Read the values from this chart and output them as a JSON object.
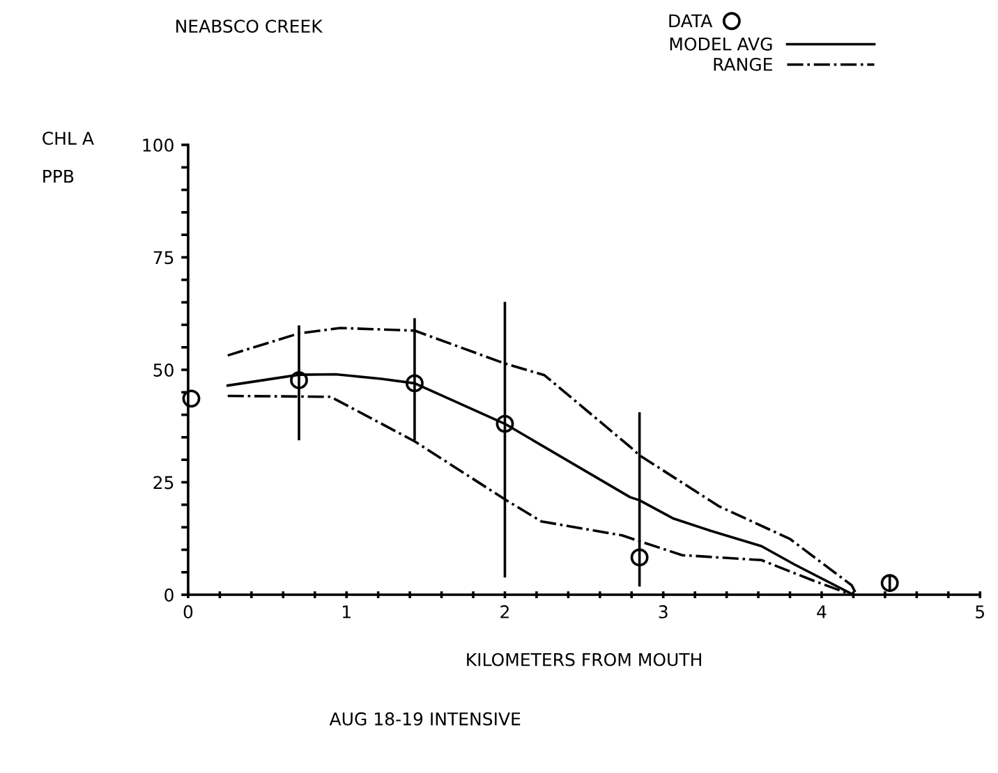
{
  "chart_data": {
    "type": "line",
    "title": "NEABSCO CREEK",
    "xlabel": "KILOMETERS FROM MOUTH",
    "ylabel": "CHL A\nPPB",
    "annotations": [
      "AUG 18-19 INTENSIVE"
    ],
    "series": [
      {
        "name": "DATA",
        "type": "scatter",
        "color": "#000000",
        "marker": "circle",
        "x": [
          0.02,
          0.7,
          1.43,
          2.0,
          2.85,
          4.43
        ],
        "values": [
          43.6,
          47.7,
          47.0,
          38.0,
          8.3,
          2.6
        ],
        "errors": [
          null,
          [
            34.6,
            59.6
          ],
          [
            34.6,
            61.2
          ],
          [
            4.1,
            64.8
          ],
          [
            2.1,
            40.3
          ],
          [
            1,
            4
          ]
        ]
      },
      {
        "name": "MODEL AVG",
        "color": "#000000",
        "line_style": "solid",
        "x": [
          0.25,
          0.7,
          0.93,
          1.22,
          1.43,
          2.0,
          2.79,
          2.85,
          3.06,
          3.3,
          3.62,
          3.83,
          4.2
        ],
        "values": [
          46.5,
          48.9,
          49.0,
          48.0,
          47.0,
          38.0,
          21.7,
          21.0,
          17.0,
          14.2,
          10.8,
          6.7,
          0
        ]
      },
      {
        "name": "RANGE",
        "color": "#000000",
        "line_style": "dashdot",
        "x": [
          0.25,
          0.7,
          0.96,
          1.43,
          2.0,
          2.25,
          2.79,
          2.85,
          3.35,
          3.8,
          4.19,
          4.22
        ],
        "values": [
          53.2,
          58.1,
          59.3,
          58.7,
          51.4,
          48.8,
          32.9,
          31.0,
          19.7,
          12.4,
          2.1,
          0
        ]
      },
      {
        "color": "#000000",
        "line_style": "dashdot",
        "x": [
          0.25,
          0.9,
          1.43,
          2.0,
          2.23,
          2.74,
          2.85,
          3.12,
          3.62,
          3.95,
          4.19
        ],
        "values": [
          44.2,
          44.0,
          34.1,
          21.2,
          16.3,
          13.2,
          11.9,
          8.8,
          7.7,
          3.1,
          0
        ]
      }
    ],
    "xlim": [
      0,
      5
    ],
    "ylim": [
      0,
      100
    ],
    "xticks": [
      0,
      {
        "value": 0.2,
        "label": null
      },
      {
        "value": 0.4,
        "label": null
      },
      {
        "value": 0.6,
        "label": null
      },
      {
        "value": 0.8,
        "label": null
      },
      1,
      {
        "value": 1.2,
        "label": null
      },
      {
        "value": 1.4,
        "label": null
      },
      {
        "value": 1.6,
        "label": null
      },
      {
        "value": 1.8,
        "label": null
      },
      2,
      {
        "value": 2.2,
        "label": null
      },
      {
        "value": 2.4,
        "label": null
      },
      {
        "value": 2.6,
        "label": null
      },
      {
        "value": 2.8,
        "label": null
      },
      3,
      {
        "value": 3.2,
        "label": null
      },
      {
        "value": 3.4,
        "label": null
      },
      {
        "value": 3.6,
        "label": null
      },
      {
        "value": 3.8,
        "label": null
      },
      4,
      {
        "value": 4.2,
        "label": null
      },
      {
        "value": 4.4,
        "label": null
      },
      {
        "value": 4.6,
        "label": null
      },
      {
        "value": 4.8,
        "label": null
      },
      5
    ],
    "yticks": [
      0,
      {
        "value": 5,
        "label": null
      },
      {
        "value": 10,
        "label": null
      },
      {
        "value": 15,
        "label": null
      },
      {
        "value": 20,
        "label": null
      },
      25,
      {
        "value": 30,
        "label": null
      },
      {
        "value": 35,
        "label": null
      },
      {
        "value": 40,
        "label": null
      },
      {
        "value": 45,
        "label": null
      },
      50,
      {
        "value": 55,
        "label": null
      },
      {
        "value": 60,
        "label": null
      },
      {
        "value": 65,
        "label": null
      },
      {
        "value": 70,
        "label": null
      },
      75,
      {
        "value": 80,
        "label": null
      },
      {
        "value": 85,
        "label": null
      },
      {
        "value": 90,
        "label": null
      },
      {
        "value": 95,
        "label": null
      },
      100
    ],
    "grid": false,
    "legend": "top right"
  }
}
